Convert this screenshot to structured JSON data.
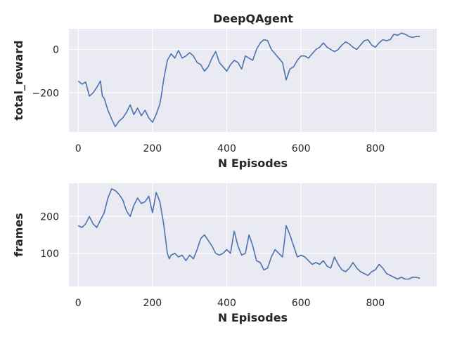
{
  "title": "DeepQAgent",
  "chart_data": [
    {
      "type": "line",
      "xlabel": "N Episodes",
      "ylabel": "total_reward",
      "xlim": [
        -25,
        965
      ],
      "ylim": [
        -380,
        95
      ],
      "xticks": [
        0,
        200,
        400,
        600,
        800
      ],
      "yticks": [
        -200,
        0
      ],
      "ytick_labels": [
        "−200",
        "0"
      ],
      "grid": true,
      "series": [
        {
          "color": "#4c72b0",
          "x": [
            0,
            10,
            20,
            30,
            40,
            50,
            55,
            60,
            65,
            70,
            80,
            90,
            100,
            110,
            120,
            130,
            140,
            150,
            160,
            170,
            180,
            190,
            200,
            210,
            220,
            225,
            230,
            240,
            250,
            260,
            270,
            280,
            290,
            300,
            310,
            320,
            330,
            340,
            350,
            360,
            370,
            380,
            390,
            400,
            410,
            420,
            430,
            440,
            450,
            460,
            470,
            480,
            490,
            500,
            510,
            520,
            530,
            540,
            550,
            560,
            570,
            580,
            590,
            600,
            610,
            620,
            630,
            640,
            650,
            660,
            670,
            680,
            690,
            700,
            710,
            720,
            730,
            740,
            750,
            760,
            770,
            780,
            790,
            800,
            810,
            820,
            830,
            840,
            850,
            860,
            870,
            880,
            890,
            900,
            910,
            920
          ],
          "y": [
            -145,
            -160,
            -150,
            -215,
            -200,
            -175,
            -160,
            -145,
            -215,
            -225,
            -280,
            -320,
            -355,
            -330,
            -315,
            -290,
            -255,
            -300,
            -270,
            -305,
            -280,
            -315,
            -335,
            -300,
            -250,
            -200,
            -140,
            -50,
            -20,
            -40,
            -5,
            -40,
            -30,
            -15,
            -30,
            -60,
            -70,
            -100,
            -80,
            -40,
            -10,
            -60,
            -80,
            -100,
            -70,
            -50,
            -60,
            -90,
            -30,
            -40,
            -50,
            0,
            30,
            45,
            40,
            0,
            -20,
            -40,
            -60,
            -140,
            -90,
            -80,
            -50,
            -30,
            -30,
            -40,
            -20,
            0,
            10,
            30,
            10,
            0,
            -10,
            0,
            20,
            35,
            25,
            10,
            0,
            20,
            40,
            45,
            20,
            10,
            30,
            45,
            40,
            45,
            70,
            65,
            75,
            70,
            60,
            55,
            60,
            60
          ]
        }
      ]
    },
    {
      "type": "line",
      "xlabel": "N Episodes",
      "ylabel": "frames",
      "xlim": [
        -25,
        965
      ],
      "ylim": [
        10,
        290
      ],
      "xticks": [
        0,
        200,
        400,
        600,
        800
      ],
      "yticks": [
        100,
        200
      ],
      "ytick_labels": [
        "100",
        "200"
      ],
      "grid": true,
      "series": [
        {
          "color": "#4c72b0",
          "x": [
            0,
            10,
            20,
            30,
            40,
            50,
            60,
            70,
            80,
            90,
            100,
            110,
            120,
            130,
            140,
            150,
            160,
            170,
            180,
            190,
            200,
            210,
            220,
            230,
            235,
            240,
            245,
            250,
            260,
            270,
            280,
            290,
            300,
            310,
            320,
            330,
            340,
            350,
            360,
            370,
            380,
            390,
            400,
            410,
            420,
            430,
            440,
            450,
            460,
            470,
            480,
            490,
            500,
            510,
            520,
            530,
            540,
            550,
            555,
            560,
            570,
            580,
            590,
            600,
            610,
            620,
            630,
            640,
            650,
            660,
            670,
            680,
            690,
            700,
            710,
            720,
            730,
            740,
            750,
            760,
            770,
            780,
            790,
            800,
            810,
            820,
            830,
            840,
            850,
            860,
            870,
            880,
            890,
            900,
            910,
            920
          ],
          "y": [
            175,
            170,
            180,
            200,
            180,
            170,
            190,
            210,
            250,
            275,
            270,
            260,
            245,
            215,
            200,
            230,
            250,
            235,
            240,
            255,
            210,
            265,
            240,
            180,
            140,
            100,
            85,
            95,
            100,
            90,
            95,
            80,
            95,
            85,
            110,
            140,
            150,
            135,
            120,
            100,
            95,
            100,
            110,
            100,
            160,
            120,
            95,
            100,
            150,
            120,
            80,
            75,
            55,
            60,
            90,
            110,
            100,
            90,
            130,
            175,
            150,
            120,
            90,
            95,
            90,
            80,
            70,
            75,
            70,
            80,
            65,
            60,
            90,
            70,
            55,
            50,
            60,
            75,
            60,
            50,
            45,
            40,
            50,
            55,
            70,
            60,
            45,
            40,
            35,
            30,
            35,
            30,
            30,
            35,
            35,
            32
          ]
        }
      ]
    }
  ]
}
